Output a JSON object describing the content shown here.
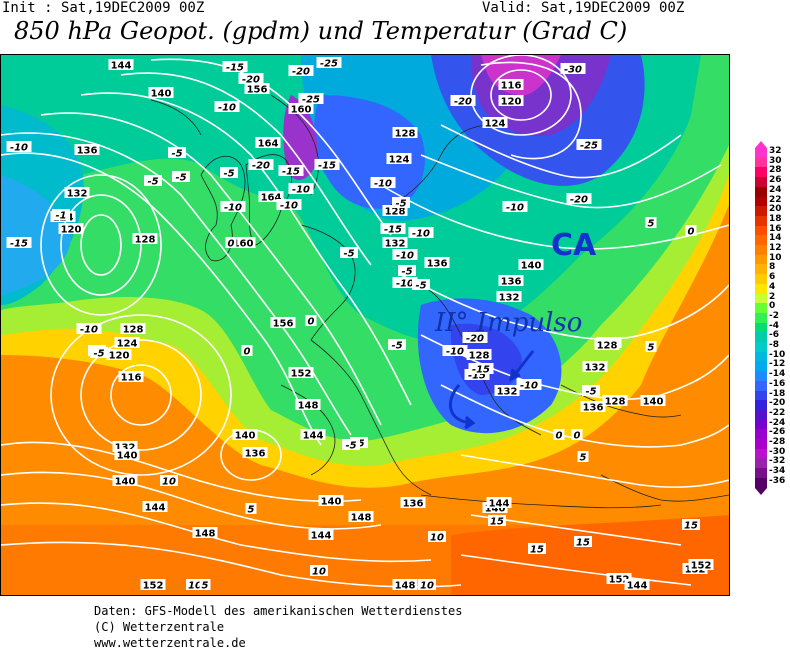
{
  "header": {
    "init": "Init : Sat,19DEC2009 00Z",
    "valid": "Valid: Sat,19DEC2009 00Z",
    "title": "850 hPa Geopot. (gpdm) und Temperatur (Grad C)"
  },
  "annotations": {
    "impulse": "II° Impulso",
    "ca": "CA"
  },
  "footer": {
    "line1": "Daten: GFS-Modell des amerikanischen Wetterdienstes",
    "line2": "(C) Wetterzentrale",
    "line3": "www.wetterzentrale.de"
  },
  "colorbar": {
    "labels": [
      "32",
      "30",
      "28",
      "26",
      "24",
      "22",
      "20",
      "18",
      "16",
      "14",
      "12",
      "10",
      "8",
      "6",
      "4",
      "2",
      "0",
      "-2",
      "-4",
      "-6",
      "-8",
      "-10",
      "-12",
      "-14",
      "-16",
      "-18",
      "-20",
      "-22",
      "-24",
      "-26",
      "-28",
      "-30",
      "-32",
      "-34",
      "-36"
    ],
    "colors": [
      "#ff33cc",
      "#ff3399",
      "#ff0066",
      "#cc0033",
      "#990000",
      "#b30000",
      "#cc1a00",
      "#e63300",
      "#ff4d00",
      "#ff6600",
      "#ff8000",
      "#ff9900",
      "#ffb300",
      "#ffcc00",
      "#ffe600",
      "#ccff33",
      "#66ff33",
      "#33ee55",
      "#00dd77",
      "#00ccaa",
      "#00cccc",
      "#00bbdd",
      "#00aaee",
      "#2288ff",
      "#3366ff",
      "#3344ee",
      "#3322dd",
      "#5511cc",
      "#7700cc",
      "#9900cc",
      "#aa00cc",
      "#bb11cc",
      "#9922aa",
      "#771188",
      "#550066"
    ]
  },
  "labels": {
    "geopotential": [
      {
        "t": "144"
      },
      {
        "t": "140"
      },
      {
        "t": "136"
      },
      {
        "t": "132"
      },
      {
        "t": "124"
      },
      {
        "t": "120"
      },
      {
        "t": "156"
      },
      {
        "t": "160"
      },
      {
        "t": "164"
      },
      {
        "t": "160"
      },
      {
        "t": "156"
      },
      {
        "t": "152"
      },
      {
        "t": "148"
      },
      {
        "t": "144"
      },
      {
        "t": "140"
      },
      {
        "t": "136"
      },
      {
        "t": "132"
      },
      {
        "t": "128"
      },
      {
        "t": "124"
      },
      {
        "t": "120"
      },
      {
        "t": "116"
      },
      {
        "t": "116"
      },
      {
        "t": "120"
      },
      {
        "t": "124"
      },
      {
        "t": "128"
      },
      {
        "t": "124"
      },
      {
        "t": "128"
      },
      {
        "t": "132"
      },
      {
        "t": "136"
      },
      {
        "t": "140"
      },
      {
        "t": "136"
      },
      {
        "t": "132"
      },
      {
        "t": "128"
      },
      {
        "t": "128"
      },
      {
        "t": "132"
      },
      {
        "t": "136"
      },
      {
        "t": "140"
      },
      {
        "t": "132"
      },
      {
        "t": "128"
      },
      {
        "t": "144"
      },
      {
        "t": "148"
      },
      {
        "t": "152"
      },
      {
        "t": "148"
      },
      {
        "t": "152"
      },
      {
        "t": "140"
      },
      {
        "t": "136"
      },
      {
        "t": "140"
      },
      {
        "t": "144"
      },
      {
        "t": "140"
      },
      {
        "t": "148"
      },
      {
        "t": "152"
      },
      {
        "t": "144"
      },
      {
        "t": "140"
      },
      {
        "t": "128"
      },
      {
        "t": "164"
      },
      {
        "t": "144"
      },
      {
        "t": "152"
      },
      {
        "t": "128"
      }
    ],
    "temperature": [
      {
        "t": "-15"
      },
      {
        "t": "-20"
      },
      {
        "t": "-10"
      },
      {
        "t": "-25"
      },
      {
        "t": "-20"
      },
      {
        "t": "-25"
      },
      {
        "t": "-30"
      },
      {
        "t": "-20"
      },
      {
        "t": "-25"
      },
      {
        "t": "-20"
      },
      {
        "t": "-15"
      },
      {
        "t": "-10"
      },
      {
        "t": "-5"
      },
      {
        "t": "-10"
      },
      {
        "t": "-10"
      },
      {
        "t": "-5"
      },
      {
        "t": "0"
      },
      {
        "t": "-5"
      },
      {
        "t": "-10"
      },
      {
        "t": "-15"
      },
      {
        "t": "-10"
      },
      {
        "t": "-5"
      },
      {
        "t": "5"
      },
      {
        "t": "0"
      },
      {
        "t": "-5"
      },
      {
        "t": "-10"
      },
      {
        "t": "-5"
      },
      {
        "t": "-10"
      },
      {
        "t": "-15"
      },
      {
        "t": "-10"
      },
      {
        "t": "-5"
      },
      {
        "t": "0"
      },
      {
        "t": "-5"
      },
      {
        "t": "-10"
      },
      {
        "t": "-20"
      },
      {
        "t": "-15"
      },
      {
        "t": "-10"
      },
      {
        "t": "-5"
      },
      {
        "t": "0"
      },
      {
        "t": "5"
      },
      {
        "t": "10"
      },
      {
        "t": "15"
      },
      {
        "t": "15"
      },
      {
        "t": "10"
      },
      {
        "t": "10"
      },
      {
        "t": "15"
      },
      {
        "t": "5"
      },
      {
        "t": "10"
      },
      {
        "t": "-5"
      },
      {
        "t": "-15"
      },
      {
        "t": "-20"
      },
      {
        "t": "-10"
      },
      {
        "t": "-5"
      },
      {
        "t": "0"
      },
      {
        "t": "-5"
      },
      {
        "t": "-10"
      },
      {
        "t": "-15"
      },
      {
        "t": "-5"
      },
      {
        "t": "0"
      },
      {
        "t": "5"
      },
      {
        "t": "10"
      },
      {
        "t": "15"
      },
      {
        "t": "5"
      },
      {
        "t": "-1"
      },
      {
        "t": "-5"
      }
    ]
  }
}
